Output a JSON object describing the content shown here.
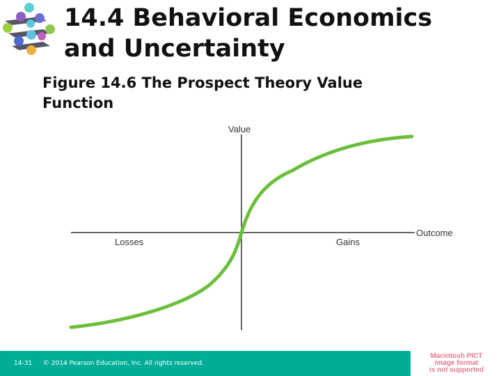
{
  "slide": {
    "title_line1": "14.4 Behavioral Economics",
    "title_line2": "and Uncertainty",
    "figure_line1": "Figure 14.6  The Prospect Theory Value",
    "figure_line2": "Function"
  },
  "diagram": {
    "y_axis_label": "Value",
    "x_axis_label": "Outcome",
    "left_label": "Losses",
    "right_label": "Gains",
    "curve_color": "#6cbf3d"
  },
  "footer": {
    "slide_number": "14-31",
    "copyright": "© 2014 Pearson Education, Inc. All rights reserved.",
    "color": "#00ae98"
  },
  "placeholder": {
    "line1": "Macintosh PICT",
    "line2": "image format",
    "line3": "is not supported"
  }
}
